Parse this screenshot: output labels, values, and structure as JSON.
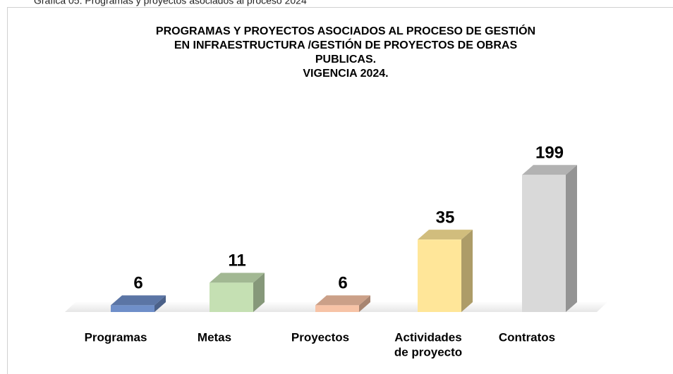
{
  "caption": "Gráfica 05. Programas y proyectos asociados al proceso 2024",
  "chart_data": {
    "type": "bar3d",
    "title": [
      "PROGRAMAS Y PROYECTOS ASOCIADOS AL PROCESO DE GESTIÓN",
      "EN INFRAESTRUCTURA /GESTIÓN DE PROYECTOS DE OBRAS",
      "PUBLICAS.",
      "VIGENCIA 2024."
    ],
    "categories": [
      [
        "Programas"
      ],
      [
        "Metas"
      ],
      [
        "Proyectos"
      ],
      [
        "Actividades",
        "de proyecto"
      ],
      [
        "Contratos"
      ]
    ],
    "values": [
      6,
      11,
      6,
      35,
      199
    ],
    "colors": [
      "#6f8fc9",
      "#c5e0b3",
      "#f7c3a6",
      "#ffe699",
      "#d9d9d9"
    ],
    "log_scale": true,
    "ylim": [
      5,
      220
    ]
  }
}
